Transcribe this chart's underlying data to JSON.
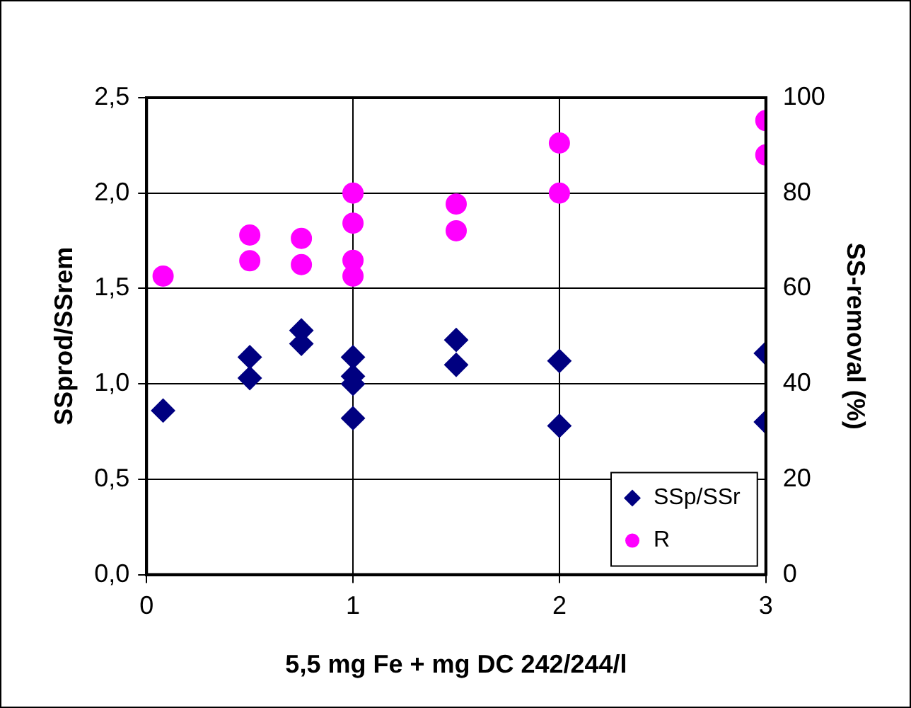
{
  "chart_data": {
    "type": "scatter",
    "xlabel": "5,5 mg Fe + mg DC 242/244/l",
    "ylabel": "SSprod/SSrem",
    "y2label": "SS-removal (%)",
    "xlim": [
      0,
      3
    ],
    "xticks": [
      0,
      1,
      2,
      3
    ],
    "ylim": [
      0,
      2.5
    ],
    "yticks": [
      {
        "value": 0,
        "label": "0,0"
      },
      {
        "value": 0.5,
        "label": "0,5"
      },
      {
        "value": 1,
        "label": "1,0"
      },
      {
        "value": 1.5,
        "label": "1,5"
      },
      {
        "value": 2,
        "label": "2,0"
      },
      {
        "value": 2.5,
        "label": "2,5"
      }
    ],
    "y2lim": [
      0,
      100
    ],
    "y2ticks": [
      0,
      20,
      40,
      60,
      80,
      100
    ],
    "grid": true,
    "legend": "bottom right",
    "series": [
      {
        "name": "SSp/SSr",
        "color": "#000080",
        "marker": "diamond",
        "x": [
          0.08,
          0.5,
          0.5,
          0.75,
          0.75,
          1,
          1,
          1,
          1,
          1.5,
          1.5,
          2,
          2,
          3,
          3
        ],
        "values": [
          0.86,
          1.14,
          1.03,
          1.28,
          1.21,
          1.14,
          1.04,
          1.0,
          0.82,
          1.23,
          1.1,
          1.12,
          0.78,
          1.16,
          0.8
        ]
      },
      {
        "name": "R",
        "color": "#ff00ff",
        "marker": "circle",
        "axis": "y2",
        "x": [
          0.08,
          0.5,
          0.5,
          0.75,
          0.75,
          1,
          1,
          1,
          1,
          1.5,
          1.5,
          2,
          2,
          3,
          3
        ],
        "values": [
          62.6,
          71.2,
          65.8,
          70.5,
          65,
          80,
          73.7,
          65.9,
          62.6,
          77.7,
          72.1,
          90.5,
          80,
          95.2,
          88
        ]
      }
    ]
  }
}
